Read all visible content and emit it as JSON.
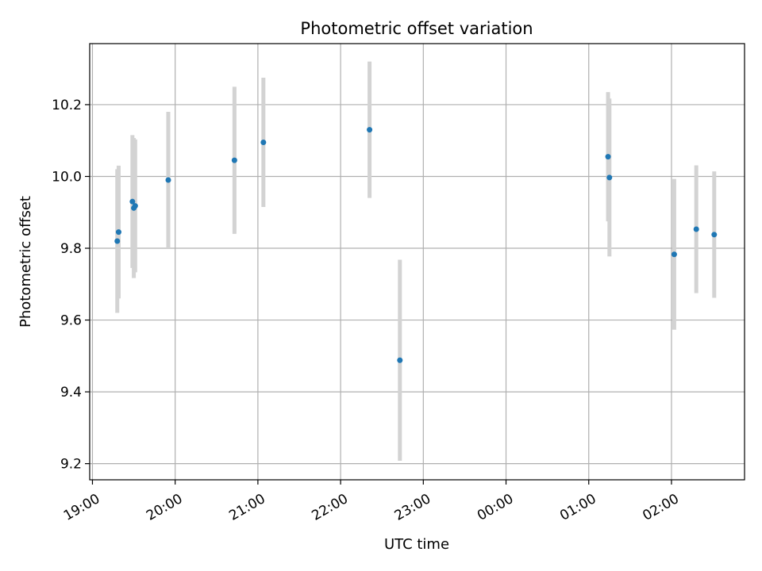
{
  "chart_data": {
    "type": "scatter",
    "title": "Photometric offset variation",
    "xlabel": "UTC time",
    "ylabel": "Photometric offset",
    "x_tick_labels": [
      "19:00",
      "20:00",
      "21:00",
      "22:00",
      "23:00",
      "00:00",
      "01:00",
      "02:00"
    ],
    "y_tick_labels": [
      "9.2",
      "9.4",
      "9.6",
      "9.8",
      "10.0",
      "10.2"
    ],
    "y_ticks": [
      9.2,
      9.4,
      9.6,
      9.8,
      10.0,
      10.2
    ],
    "xlim": [
      "18:58",
      "02:53"
    ],
    "ylim": [
      9.155,
      10.37
    ],
    "grid": true,
    "series": [
      {
        "x": [
          "19:18",
          "19:19",
          "19:29",
          "19:30",
          "19:31",
          "19:55",
          "20:43",
          "21:04",
          "22:21",
          "22:43",
          "01:14",
          "01:15",
          "02:02",
          "02:18",
          "02:31"
        ],
        "y": [
          9.82,
          9.845,
          9.93,
          9.912,
          9.918,
          9.99,
          10.045,
          10.095,
          10.13,
          9.488,
          10.055,
          9.997,
          9.783,
          9.853,
          9.838
        ],
        "yerr": [
          0.2,
          0.185,
          0.185,
          0.195,
          0.185,
          0.19,
          0.205,
          0.18,
          0.19,
          0.28,
          0.18,
          0.22,
          0.21,
          0.178,
          0.176
        ],
        "color": "#1f77b4",
        "errorbar_color": "#d3d3d3"
      }
    ]
  }
}
